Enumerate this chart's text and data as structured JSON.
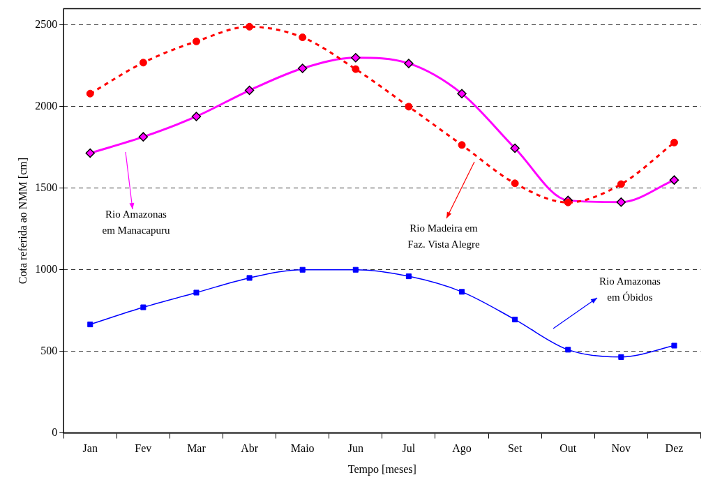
{
  "chart_data": {
    "type": "line",
    "xlabel": "Tempo [meses]",
    "ylabel": "Cota referida ao NMM [cm]",
    "categories": [
      "Jan",
      "Fev",
      "Mar",
      "Abr",
      "Maio",
      "Jun",
      "Jul",
      "Ago",
      "Set",
      "Out",
      "Nov",
      "Dez"
    ],
    "ylim": [
      0,
      2600
    ],
    "yticks": [
      0,
      500,
      1000,
      1500,
      2000,
      2500
    ],
    "grid": "y",
    "annotations": [
      "Rio Amazonas em Manacapuru",
      "Rio Madeira em Faz. Vista Alegre",
      "Rio Amazonas em Óbidos"
    ],
    "series": [
      {
        "color": "#ff00ff",
        "marker": "diamond",
        "line_style": "solid",
        "values": [
          1715,
          1815,
          1940,
          2100,
          2235,
          2300,
          2265,
          2080,
          1745,
          1425,
          1415,
          1550
        ]
      },
      {
        "color": "#ff0000",
        "marker": "circle",
        "line_style": "dashed",
        "values": [
          2080,
          2270,
          2400,
          2490,
          2425,
          2230,
          2000,
          1765,
          1530,
          1413,
          1525,
          1780
        ]
      },
      {
        "color": "#0000ff",
        "marker": "square",
        "line_style": "solid",
        "values": [
          665,
          770,
          860,
          950,
          1000,
          1000,
          960,
          865,
          695,
          510,
          465,
          535
        ]
      }
    ]
  }
}
